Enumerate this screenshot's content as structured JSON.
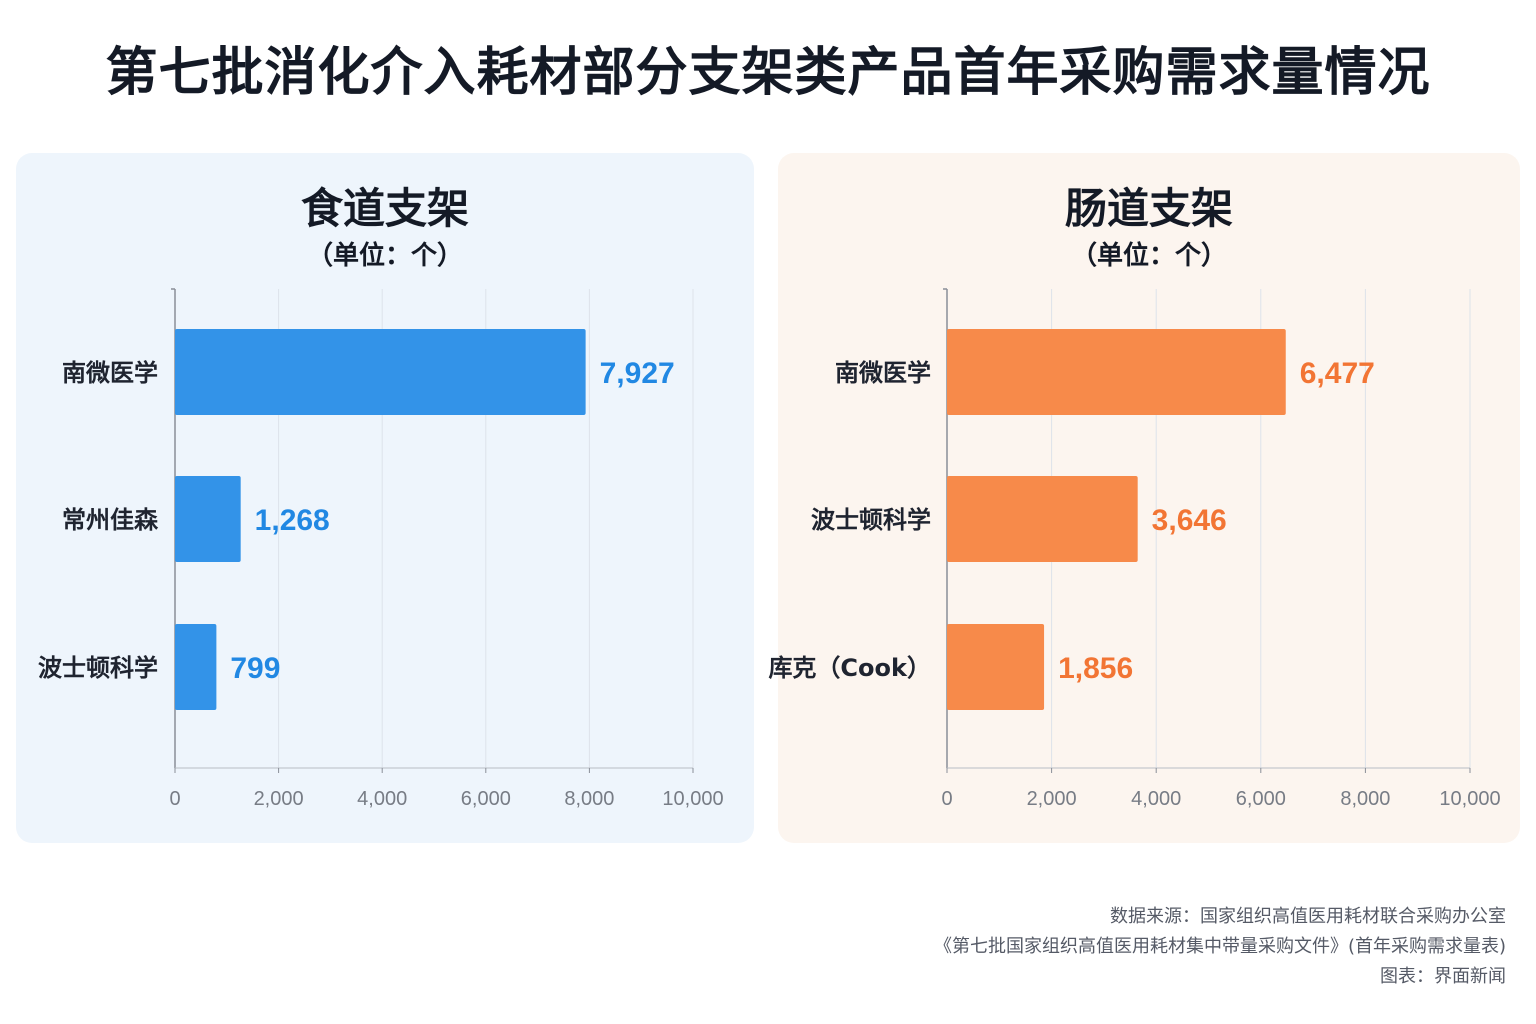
{
  "title": "第七批消化介入耗材部分支架类产品首年采购需求量情况",
  "panels": [
    {
      "title": "食道支架",
      "unit": "（单位：个）",
      "color": "#3393e8",
      "label_color": "#2188e3"
    },
    {
      "title": "肠道支架",
      "unit": "（单位：个）",
      "color": "#f78a4a",
      "label_color": "#f27534"
    }
  ],
  "chart_data": [
    {
      "type": "bar",
      "orientation": "horizontal",
      "title": "食道支架",
      "subtitle": "（单位：个）",
      "categories": [
        "南微医学",
        "常州佳森",
        "波士顿科学"
      ],
      "values": [
        7927,
        1268,
        799
      ],
      "value_labels": [
        "7,927",
        "1,268",
        "799"
      ],
      "xlim": [
        0,
        10000
      ],
      "xticks": [
        0,
        2000,
        4000,
        6000,
        8000,
        10000
      ],
      "xtick_labels": [
        "0",
        "2,000",
        "4,000",
        "6,000",
        "8,000",
        "10,000"
      ],
      "grid": true
    },
    {
      "type": "bar",
      "orientation": "horizontal",
      "title": "肠道支架",
      "subtitle": "（单位：个）",
      "categories": [
        "南微医学",
        "波士顿科学",
        "库克（Cook）"
      ],
      "values": [
        6477,
        3646,
        1856
      ],
      "value_labels": [
        "6,477",
        "3,646",
        "1,856"
      ],
      "xlim": [
        0,
        10000
      ],
      "xticks": [
        0,
        2000,
        4000,
        6000,
        8000,
        10000
      ],
      "xtick_labels": [
        "0",
        "2,000",
        "4,000",
        "6,000",
        "8,000",
        "10,000"
      ],
      "grid": true
    }
  ],
  "source": {
    "line1": "数据来源：国家组织高值医用耗材联合采购办公室",
    "line2": "《第七批国家组织高值医用耗材集中带量采购文件》(首年采购需求量表)",
    "line3": "图表：界面新闻"
  }
}
